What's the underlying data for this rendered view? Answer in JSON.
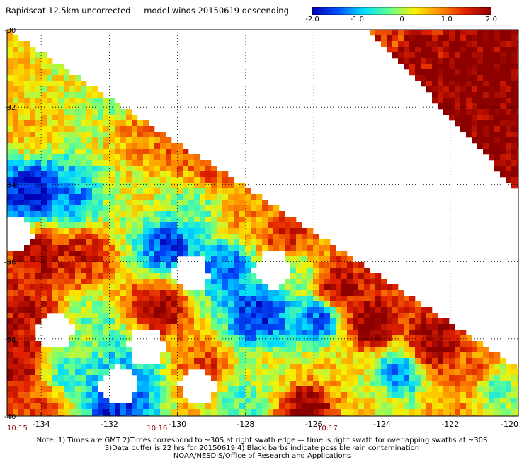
{
  "title": "Rapidscat 12.5km uncorrected — model winds 20150619 descending",
  "colorbar": {
    "labels": [
      "-2.0",
      "-1.0",
      "0",
      "1.0",
      "2.0"
    ],
    "colors": [
      "#0000b4",
      "#0050ff",
      "#00dcff",
      "#60ff90",
      "#f8f000",
      "#ff8c00",
      "#e02000",
      "#8c0000"
    ]
  },
  "chart_data": {
    "type": "heatmap",
    "title": "Rapidscat 12.5km uncorrected — model winds 20150619 descending",
    "value_range": [
      -2.0,
      2.0
    ],
    "xlim": [
      -135,
      -120
    ],
    "ylim": [
      -40,
      -30
    ],
    "x_ticks": [
      "-134",
      "-132",
      "-130",
      "-128",
      "-126",
      "-124",
      "-122",
      "-120"
    ],
    "y_ticks": [
      "-30",
      "-32",
      "-34",
      "-36",
      "-38",
      "-40"
    ],
    "time_labels": [
      {
        "lon": -135.0,
        "text": "10:15"
      },
      {
        "lon": -130.6,
        "text": "10:16"
      },
      {
        "lon": -125.6,
        "text": "10:17"
      }
    ],
    "regions": [
      {
        "lon": -134.5,
        "lat": -30.8,
        "value": 0.4
      },
      {
        "lon": -133.2,
        "lat": -31.3,
        "value": 0.2
      },
      {
        "lon": -132.0,
        "lat": -32.0,
        "value": 0.0
      },
      {
        "lon": -134.3,
        "lat": -32.6,
        "value": 0.6
      },
      {
        "lon": -131.2,
        "lat": -32.6,
        "value": 0.9
      },
      {
        "lon": -130.0,
        "lat": -33.1,
        "value": 1.1
      },
      {
        "lon": -128.8,
        "lat": -33.6,
        "value": 1.3
      },
      {
        "lon": -134.2,
        "lat": -34.2,
        "value": -2.0
      },
      {
        "lon": -133.1,
        "lat": -34.4,
        "value": -1.2
      },
      {
        "lon": -131.2,
        "lat": -34.3,
        "value": 0.3
      },
      {
        "lon": -129.5,
        "lat": -34.6,
        "value": -0.3
      },
      {
        "lon": -128.0,
        "lat": -34.9,
        "value": 0.8
      },
      {
        "lon": -126.8,
        "lat": -35.4,
        "value": 1.5
      },
      {
        "lon": -134.0,
        "lat": -35.8,
        "value": 1.8
      },
      {
        "lon": -132.8,
        "lat": -35.8,
        "value": 1.6
      },
      {
        "lon": -130.3,
        "lat": -35.6,
        "value": -1.6
      },
      {
        "lon": -128.6,
        "lat": -36.1,
        "value": -1.3
      },
      {
        "lon": -126.6,
        "lat": -36.3,
        "value": -0.2
      },
      {
        "lon": -125.3,
        "lat": -36.7,
        "value": 1.9
      },
      {
        "lon": -134.5,
        "lat": -37.4,
        "value": 1.7
      },
      {
        "lon": -132.4,
        "lat": -37.6,
        "value": -0.3
      },
      {
        "lon": -130.6,
        "lat": -37.2,
        "value": 2.0
      },
      {
        "lon": -127.6,
        "lat": -37.4,
        "value": -1.8
      },
      {
        "lon": -125.9,
        "lat": -37.5,
        "value": -1.5
      },
      {
        "lon": -124.3,
        "lat": -37.6,
        "value": 2.0
      },
      {
        "lon": -122.5,
        "lat": -38.2,
        "value": 2.0
      },
      {
        "lon": -134.7,
        "lat": -38.7,
        "value": 1.9
      },
      {
        "lon": -133.2,
        "lat": -38.9,
        "value": -0.6
      },
      {
        "lon": -131.4,
        "lat": -38.6,
        "value": -0.8
      },
      {
        "lon": -129.2,
        "lat": -38.9,
        "value": 1.4
      },
      {
        "lon": -127.4,
        "lat": -38.9,
        "value": 0.2
      },
      {
        "lon": -125.5,
        "lat": -38.8,
        "value": 0.5
      },
      {
        "lon": -123.5,
        "lat": -38.9,
        "value": -1.2
      },
      {
        "lon": -121.3,
        "lat": -38.9,
        "value": 1.2
      },
      {
        "lon": -134.0,
        "lat": -39.8,
        "value": 1.3
      },
      {
        "lon": -131.8,
        "lat": -39.6,
        "value": -1.7
      },
      {
        "lon": -128.2,
        "lat": -39.6,
        "value": -0.5
      },
      {
        "lon": -126.2,
        "lat": -39.8,
        "value": 2.0
      },
      {
        "lon": -124.2,
        "lat": -39.8,
        "value": 0.3
      },
      {
        "lon": -121.9,
        "lat": -39.8,
        "value": 0.8
      },
      {
        "lon": -120.8,
        "lat": -39.3,
        "value": -0.4
      },
      {
        "lon": -124.5,
        "lat": -30.3,
        "value": 0.7
      },
      {
        "lon": -122.8,
        "lat": -30.6,
        "value": 1.7
      },
      {
        "lon": -121.0,
        "lat": -31.0,
        "value": 2.0
      },
      {
        "lon": -122.2,
        "lat": -32.2,
        "value": 2.0
      },
      {
        "lon": -120.6,
        "lat": -33.2,
        "value": 2.0
      }
    ],
    "gaps": [
      {
        "lon": -134.8,
        "lat": -35.3
      },
      {
        "lon": -133.6,
        "lat": -37.8
      },
      {
        "lon": -131.7,
        "lat": -39.2
      },
      {
        "lon": -129.6,
        "lat": -36.3
      },
      {
        "lon": -127.2,
        "lat": -36.2
      },
      {
        "lon": -129.4,
        "lat": -39.2
      },
      {
        "lon": -130.9,
        "lat": -38.2
      }
    ]
  },
  "footer": {
    "line1": "Note: 1) Times are GMT 2)Times correspond to ~30S at right swath edge — time is right swath for overlapping swaths at ~30S",
    "line2": "3)Data buffer is 22 hrs for 20150619 4) Black barbs indicate possible rain contamination",
    "line3": "NOAA/NESDIS/Office of Research and Applications"
  }
}
